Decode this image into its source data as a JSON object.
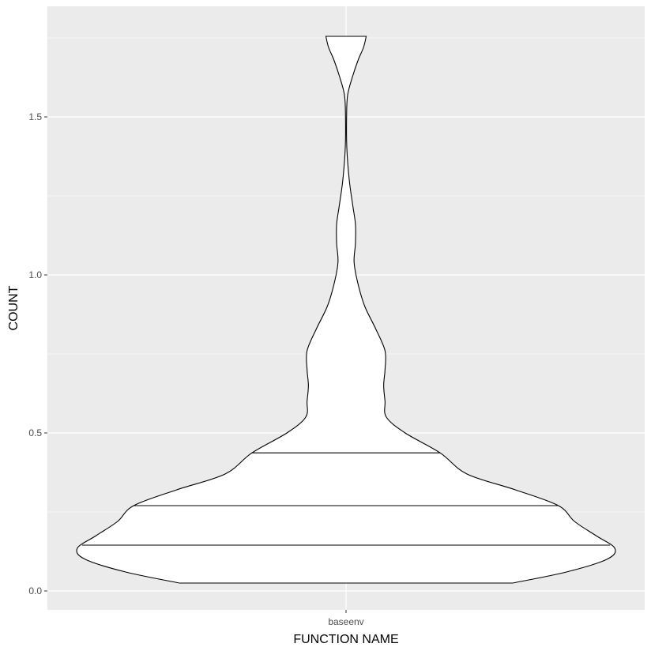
{
  "chart_data": {
    "type": "violin",
    "xlabel": "FUNCTION NAME",
    "ylabel": "COUNT",
    "categories": [
      "baseenv"
    ],
    "ylim": [
      -0.06,
      1.85
    ],
    "y_ticks": [
      0.0,
      0.5,
      1.0,
      1.5
    ],
    "y_tick_labels": [
      "0.0",
      "0.5",
      "1.0",
      "1.5"
    ],
    "grid": true,
    "colors": {
      "panel_background": "#ebebeb",
      "grid_line": "#ffffff",
      "violin_fill": "#ffffff",
      "violin_outline": "#000000"
    },
    "violin": {
      "category": "baseenv",
      "range": [
        0.025,
        1.755
      ],
      "quantiles": [
        0.145,
        0.27,
        0.437
      ],
      "density_profile": [
        {
          "y": 0.025,
          "half_width": 0.62
        },
        {
          "y": 0.06,
          "half_width": 0.82
        },
        {
          "y": 0.1,
          "half_width": 0.97
        },
        {
          "y": 0.135,
          "half_width": 1.0
        },
        {
          "y": 0.175,
          "half_width": 0.93
        },
        {
          "y": 0.22,
          "half_width": 0.85
        },
        {
          "y": 0.27,
          "half_width": 0.79
        },
        {
          "y": 0.32,
          "half_width": 0.63
        },
        {
          "y": 0.37,
          "half_width": 0.45
        },
        {
          "y": 0.437,
          "half_width": 0.35
        },
        {
          "y": 0.5,
          "half_width": 0.22
        },
        {
          "y": 0.55,
          "half_width": 0.15
        },
        {
          "y": 0.6,
          "half_width": 0.145
        },
        {
          "y": 0.65,
          "half_width": 0.14
        },
        {
          "y": 0.7,
          "half_width": 0.145
        },
        {
          "y": 0.76,
          "half_width": 0.145
        },
        {
          "y": 0.83,
          "half_width": 0.11
        },
        {
          "y": 0.9,
          "half_width": 0.07
        },
        {
          "y": 0.97,
          "half_width": 0.045
        },
        {
          "y": 1.04,
          "half_width": 0.03
        },
        {
          "y": 1.1,
          "half_width": 0.035
        },
        {
          "y": 1.16,
          "half_width": 0.035
        },
        {
          "y": 1.22,
          "half_width": 0.025
        },
        {
          "y": 1.3,
          "half_width": 0.012
        },
        {
          "y": 1.4,
          "half_width": 0.003
        },
        {
          "y": 1.5,
          "half_width": 0.002
        },
        {
          "y": 1.57,
          "half_width": 0.006
        },
        {
          "y": 1.63,
          "half_width": 0.025
        },
        {
          "y": 1.68,
          "half_width": 0.045
        },
        {
          "y": 1.72,
          "half_width": 0.065
        },
        {
          "y": 1.755,
          "half_width": 0.075
        }
      ]
    }
  }
}
